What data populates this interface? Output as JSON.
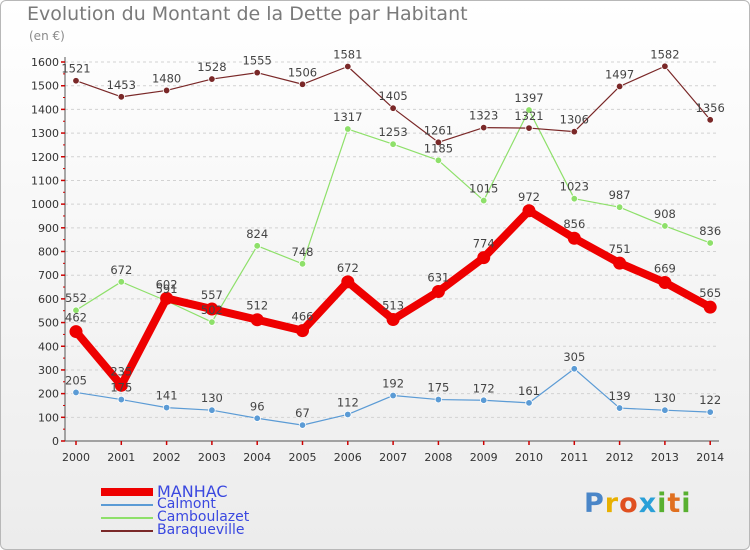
{
  "chart_data": {
    "type": "line",
    "title": "Evolution du Montant de la Dette par Habitant",
    "subtitle": "(en €)",
    "categories": [
      "2000",
      "2001",
      "2002",
      "2003",
      "2004",
      "2005",
      "2006",
      "2007",
      "2008",
      "2009",
      "2010",
      "2011",
      "2012",
      "2013",
      "2014"
    ],
    "y_ticks": [
      "0",
      "100",
      "200",
      "300",
      "400",
      "500",
      "600",
      "700",
      "800",
      "900",
      "1000",
      "1100",
      "1200",
      "1300",
      "1400",
      "1500",
      "1600"
    ],
    "ylim": [
      0,
      1600
    ],
    "grid": "horizontal dashed",
    "legend_position": "bottom-left",
    "series": [
      {
        "name": "MANHAC",
        "color": "#ee0000",
        "emphasis": true,
        "values": [
          462,
          235,
          602,
          557,
          512,
          466,
          672,
          513,
          631,
          774,
          972,
          856,
          751,
          669,
          565
        ]
      },
      {
        "name": "Calmont",
        "color": "#5b9bd5",
        "values": [
          205,
          175,
          141,
          130,
          96,
          67,
          112,
          192,
          175,
          172,
          161,
          305,
          139,
          130,
          122
        ]
      },
      {
        "name": "Camboulazet",
        "color": "#8ee06a",
        "values": [
          552,
          672,
          591,
          502,
          824,
          748,
          1317,
          1253,
          1185,
          1015,
          1397,
          1023,
          987,
          908,
          836
        ]
      },
      {
        "name": "Baraqueville",
        "color": "#7a2828",
        "values": [
          1521,
          1453,
          1480,
          1528,
          1555,
          1506,
          1581,
          1405,
          1261,
          1323,
          1321,
          1306,
          1497,
          1582,
          1356
        ]
      }
    ]
  },
  "logo": {
    "letters": [
      "P",
      "r",
      "o",
      "x",
      "i",
      "t",
      "i"
    ],
    "colors": [
      "#4a86c8",
      "#e8b000",
      "#e05020",
      "#2aa0d8",
      "#58b030",
      "#e07020",
      "#58b030"
    ]
  }
}
